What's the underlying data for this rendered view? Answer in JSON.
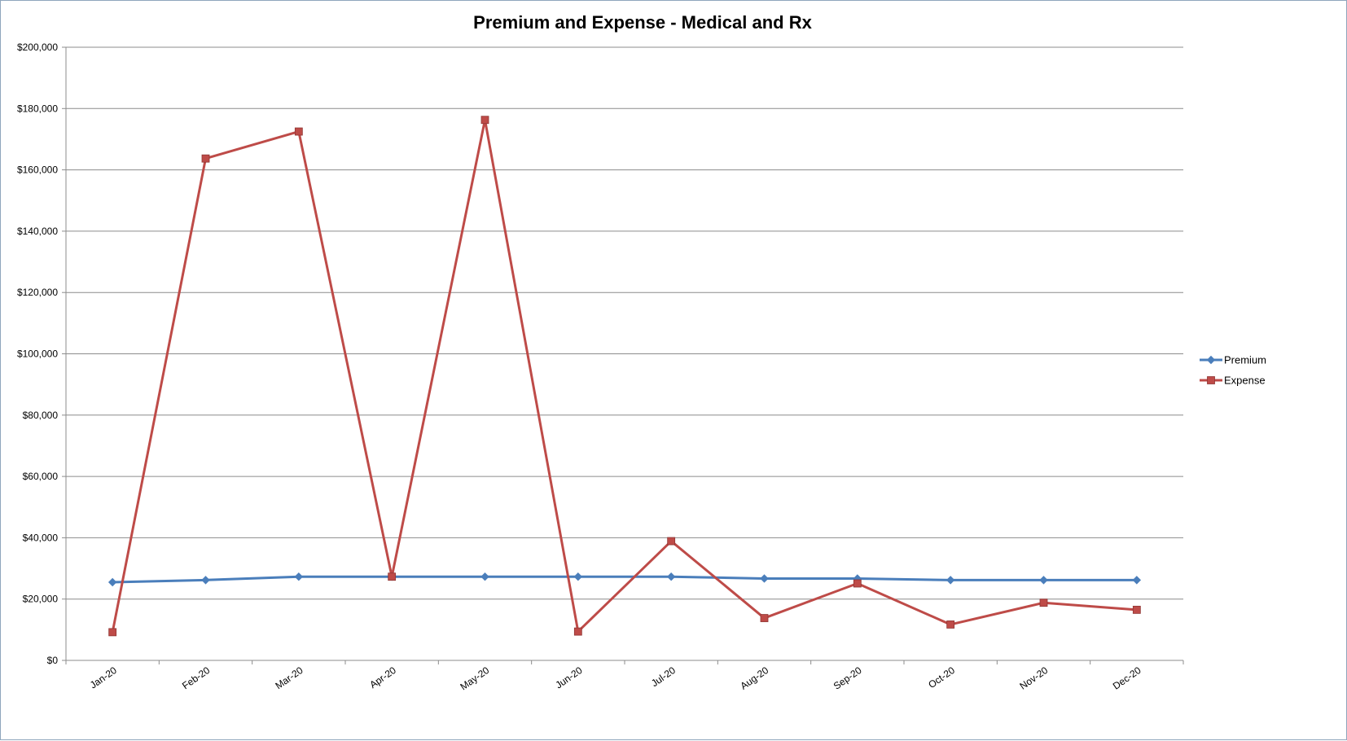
{
  "chart_data": {
    "type": "line",
    "title": "Premium and Expense - Medical and Rx",
    "xlabel": "",
    "ylabel": "",
    "categories": [
      "Jan-20",
      "Feb-20",
      "Mar-20",
      "Apr-20",
      "May-20",
      "Jun-20",
      "Jul-20",
      "Aug-20",
      "Sep-20",
      "Oct-20",
      "Nov-20",
      "Dec-20"
    ],
    "y_ticks": [
      "$0",
      "$20,000",
      "$40,000",
      "$60,000",
      "$80,000",
      "$100,000",
      "$120,000",
      "$140,000",
      "$160,000",
      "$180,000",
      "$200,000"
    ],
    "ylim": [
      0,
      200000
    ],
    "grid": true,
    "legend_position": "right",
    "series": [
      {
        "name": "Premium",
        "color": "#4a7ebb",
        "marker": "diamond",
        "values": [
          25500,
          26200,
          27300,
          27300,
          27300,
          27300,
          27300,
          26700,
          26700,
          26200,
          26200,
          26200
        ]
      },
      {
        "name": "Expense",
        "color": "#be4b48",
        "marker": "square",
        "values": [
          9200,
          163700,
          172500,
          27300,
          176300,
          9400,
          38900,
          13800,
          25100,
          11700,
          18800,
          16500
        ]
      }
    ]
  }
}
